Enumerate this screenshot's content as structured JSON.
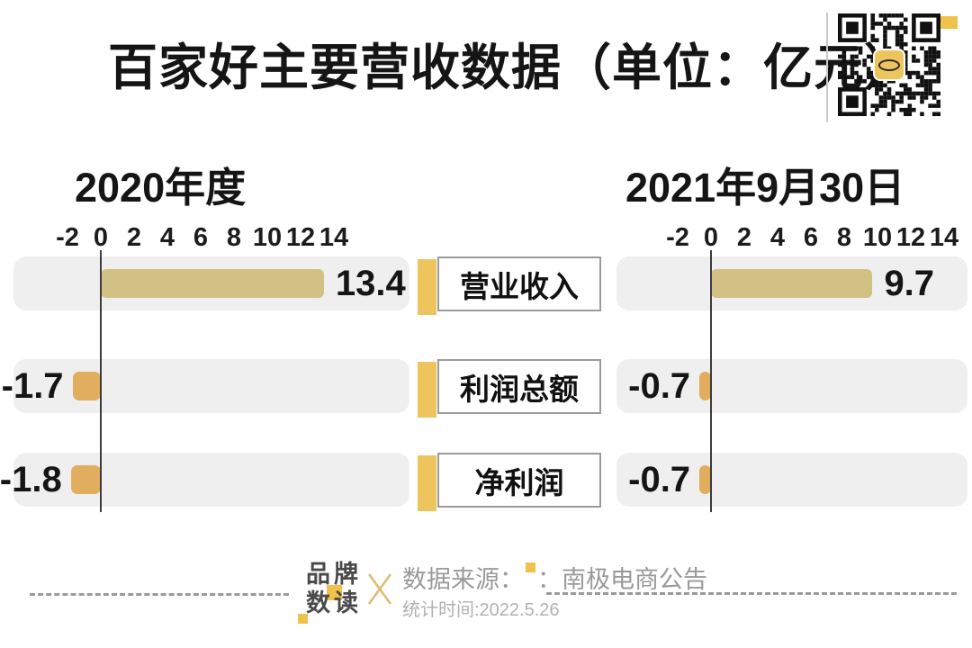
{
  "title": "百家好主要营收数据（单位：亿元）",
  "metrics": [
    "营业收入",
    "利润总额",
    "净利润"
  ],
  "footer": {
    "brand_line1": "品牌",
    "brand_line2": "数读",
    "source_label": "数据来源：",
    "source_value": "：南极电商公告",
    "stat_time": "统计时间:2022.5.26"
  },
  "icons": {
    "qr_code": "qr-code",
    "x_separator": "x-separator-icon"
  },
  "colors": {
    "positive_bar": "#d2c185",
    "negative_bar": "#e1ad5e",
    "accent_gold": "#eec45f",
    "footer_gold": "#f0c14b",
    "track_gray": "#efeff0",
    "text_black": "#151515",
    "footer_gray": "#9a9a9a",
    "brand_dark": "#4a4a4a"
  },
  "chart_data": [
    {
      "type": "bar",
      "orientation": "horizontal",
      "title": "2020年度",
      "categories": [
        "营业收入",
        "利润总额",
        "净利润"
      ],
      "values": [
        13.4,
        -1.7,
        -1.8
      ],
      "xlim": [
        -2,
        14
      ],
      "ticks": [
        -2,
        0,
        2,
        4,
        6,
        8,
        10,
        12,
        14
      ],
      "unit": "亿元",
      "grid": false,
      "legend": "none"
    },
    {
      "type": "bar",
      "orientation": "horizontal",
      "title": "2021年9月30日",
      "categories": [
        "营业收入",
        "利润总额",
        "净利润"
      ],
      "values": [
        9.7,
        -0.7,
        -0.7
      ],
      "xlim": [
        -2,
        14
      ],
      "ticks": [
        -2,
        0,
        2,
        4,
        6,
        8,
        10,
        12,
        14
      ],
      "unit": "亿元",
      "grid": false,
      "legend": "none"
    }
  ]
}
